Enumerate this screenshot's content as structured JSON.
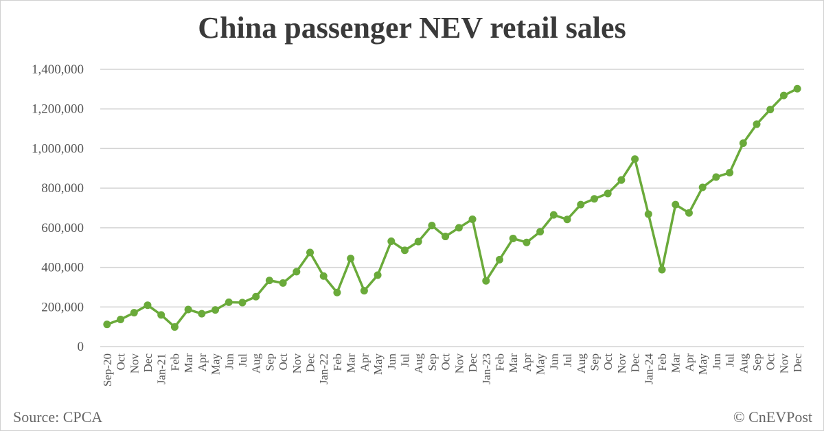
{
  "chart_data": {
    "type": "line",
    "title": "China passenger NEV retail sales",
    "xlabel": "",
    "ylabel": "",
    "ylim": [
      0,
      1400000
    ],
    "yticks": [
      "0",
      "200,000",
      "400,000",
      "600,000",
      "800,000",
      "1,000,000",
      "1,200,000",
      "1,400,000"
    ],
    "grid": true,
    "legend": "none",
    "color": "#6aaa3a",
    "categories": [
      "Sep-20",
      "Oct",
      "Nov",
      "Dec",
      "Jan-21",
      "Feb",
      "Mar",
      "Apr",
      "May",
      "Jun",
      "Jul",
      "Aug",
      "Sep",
      "Oct",
      "Nov",
      "Dec",
      "Jan-22",
      "Feb",
      "Mar",
      "Apr",
      "May",
      "Jun",
      "Jul",
      "Aug",
      "Sep",
      "Oct",
      "Nov",
      "Dec",
      "Jan-23",
      "Feb",
      "Mar",
      "Apr",
      "May",
      "Jun",
      "Jul",
      "Aug",
      "Sep",
      "Oct",
      "Nov",
      "Dec",
      "Jan-24",
      "Feb",
      "Mar",
      "Apr",
      "May",
      "Jun",
      "Jul",
      "Aug",
      "Sep",
      "Oct",
      "Nov",
      "Dec"
    ],
    "values": [
      112000,
      137000,
      171000,
      209000,
      160000,
      99000,
      187000,
      166000,
      185000,
      224000,
      222000,
      252000,
      334000,
      321000,
      378000,
      475000,
      356000,
      273000,
      445000,
      282000,
      361000,
      532000,
      486000,
      530000,
      611000,
      556000,
      600000,
      643000,
      332000,
      439000,
      546000,
      526000,
      580000,
      665000,
      642000,
      717000,
      746000,
      773000,
      841000,
      947000,
      669000,
      388000,
      717000,
      675000,
      804000,
      856000,
      878000,
      1027000,
      1123000,
      1197000,
      1268000,
      1302000
    ]
  },
  "footer": {
    "source": "Source: CPCA",
    "credit": "© CnEVPost"
  }
}
